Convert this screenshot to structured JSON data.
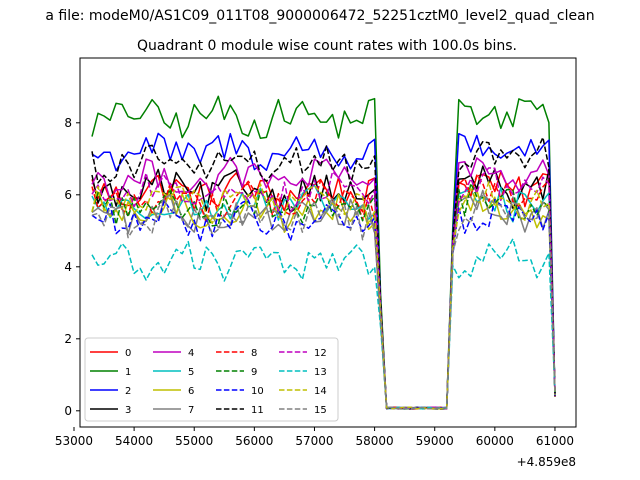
{
  "figure": {
    "suptitle": "a file: modeM0/AS1C09_011T08_9000006472_52251cztM0_level2_quad_clean",
    "title": "Quadrant 0 module wise count rates with 100.0s bins.",
    "offset_label": "+4.859e8"
  },
  "chart_data": {
    "type": "line",
    "title": "Quadrant 0 module wise count rates with 100.0s bins.",
    "xlabel": "",
    "ylabel": "",
    "xlim": [
      53100,
      61350
    ],
    "ylim": [
      -0.45,
      9.8
    ],
    "x_offset": "+4.859e8",
    "x_ticks": [
      53000,
      54000,
      55000,
      56000,
      57000,
      58000,
      59000,
      60000,
      61000
    ],
    "x_tick_labels": [
      "53000",
      "54000",
      "55000",
      "56000",
      "57000",
      "58000",
      "59000",
      "60000",
      "61000"
    ],
    "y_ticks": [
      0,
      2,
      4,
      6,
      8
    ],
    "y_tick_labels": [
      "0",
      "2",
      "4",
      "6",
      "8"
    ],
    "legend": {
      "placement": "lower-left",
      "columns": 4
    },
    "x_description": "100 s bins: 53300-58000 active, drop through 58200, zero 58200-59200, active 59200-61000",
    "series": [
      {
        "name": "0",
        "color": "#ff0000",
        "dash": "solid",
        "level": 6.1
      },
      {
        "name": "1",
        "color": "#008000",
        "dash": "solid",
        "level": 8.15
      },
      {
        "name": "2",
        "color": "#0000ff",
        "dash": "solid",
        "level": 7.2
      },
      {
        "name": "3",
        "color": "#000000",
        "dash": "solid",
        "level": 6.1
      },
      {
        "name": "4",
        "color": "#bf00bf",
        "dash": "solid",
        "level": 6.45
      },
      {
        "name": "5",
        "color": "#00bfbf",
        "dash": "solid",
        "level": 5.7
      },
      {
        "name": "6",
        "color": "#bfbf00",
        "dash": "solid",
        "level": 5.55
      },
      {
        "name": "7",
        "color": "#808080",
        "dash": "solid",
        "level": 5.45
      },
      {
        "name": "8",
        "color": "#ff0000",
        "dash": "dashed",
        "level": 5.85
      },
      {
        "name": "9",
        "color": "#008000",
        "dash": "dashed",
        "level": 5.7
      },
      {
        "name": "10",
        "color": "#0000ff",
        "dash": "dashed",
        "level": 5.25
      },
      {
        "name": "11",
        "color": "#000000",
        "dash": "dashed",
        "level": 6.85
      },
      {
        "name": "12",
        "color": "#bf00bf",
        "dash": "dashed",
        "level": 6.1
      },
      {
        "name": "13",
        "color": "#00bfbf",
        "dash": "dashed",
        "level": 4.15
      },
      {
        "name": "14",
        "color": "#bfbf00",
        "dash": "dashed",
        "level": 5.8
      },
      {
        "name": "15",
        "color": "#808080",
        "dash": "dashed",
        "level": 5.35
      }
    ]
  }
}
